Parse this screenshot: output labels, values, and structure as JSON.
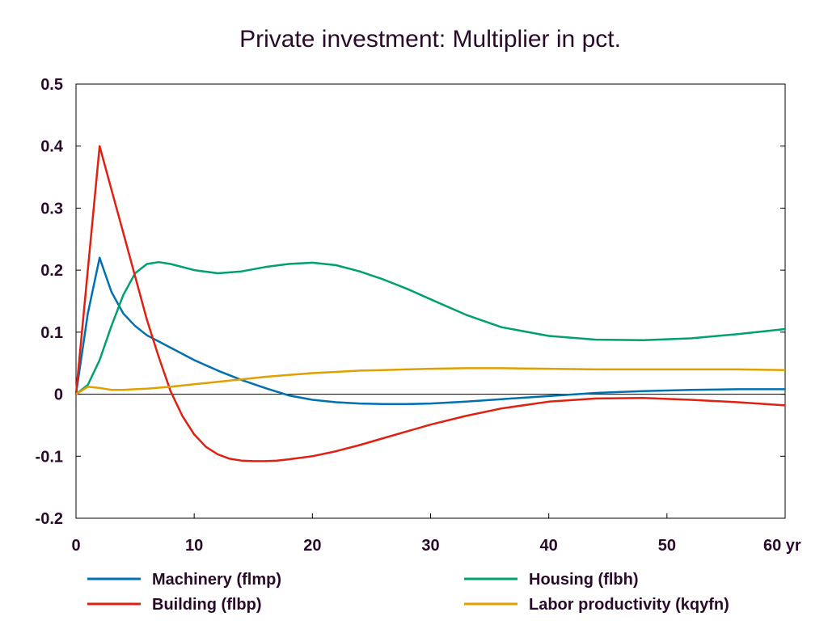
{
  "chart_data": {
    "type": "line",
    "title": "Private investment: Multiplier in pct.",
    "xlabel": "",
    "ylabel": "",
    "x_unit_label": "yr",
    "xlim": [
      0,
      60
    ],
    "ylim": [
      -0.2,
      0.5
    ],
    "x_ticks": [
      0,
      10,
      20,
      30,
      40,
      50,
      60
    ],
    "x_tick_labels": [
      "0",
      "10",
      "20",
      "30",
      "40",
      "50",
      "60 yr"
    ],
    "y_ticks": [
      -0.2,
      -0.1,
      0,
      0.1,
      0.2,
      0.3,
      0.4,
      0.5
    ],
    "y_tick_labels": [
      "-0.2",
      "-0.1",
      "0",
      "0.1",
      "0.2",
      "0.3",
      "0.4",
      "0.5"
    ],
    "grid": false,
    "zero_line": true,
    "legend_position": "bottom",
    "series": [
      {
        "name": "Machinery (flmp)",
        "color": "#0070b0",
        "x": [
          0,
          1,
          2,
          3,
          4,
          5,
          6,
          8,
          10,
          12,
          14,
          16,
          18,
          20,
          22,
          24,
          26,
          28,
          30,
          33,
          36,
          40,
          44,
          48,
          52,
          56,
          60
        ],
        "y": [
          0,
          0.13,
          0.22,
          0.165,
          0.13,
          0.11,
          0.095,
          0.075,
          0.055,
          0.038,
          0.023,
          0.01,
          -0.002,
          -0.009,
          -0.013,
          -0.015,
          -0.016,
          -0.016,
          -0.015,
          -0.012,
          -0.008,
          -0.003,
          0.002,
          0.005,
          0.007,
          0.008,
          0.008
        ]
      },
      {
        "name": "Housing (flbh)",
        "color": "#00a070",
        "x": [
          0,
          1,
          2,
          3,
          4,
          5,
          6,
          7,
          8,
          10,
          12,
          14,
          16,
          18,
          20,
          22,
          24,
          26,
          28,
          30,
          33,
          36,
          40,
          44,
          48,
          52,
          56,
          60
        ],
        "y": [
          0,
          0.015,
          0.055,
          0.11,
          0.16,
          0.195,
          0.21,
          0.213,
          0.21,
          0.2,
          0.195,
          0.198,
          0.205,
          0.21,
          0.212,
          0.208,
          0.198,
          0.185,
          0.17,
          0.153,
          0.128,
          0.108,
          0.094,
          0.088,
          0.087,
          0.09,
          0.097,
          0.105
        ]
      },
      {
        "name": "Building (flbp)",
        "color": "#e02010",
        "x": [
          0,
          1,
          2,
          3,
          4,
          5,
          6,
          7,
          8,
          9,
          10,
          11,
          12,
          13,
          14,
          15,
          16,
          17,
          18,
          20,
          22,
          24,
          26,
          28,
          30,
          33,
          36,
          40,
          44,
          48,
          52,
          56,
          60
        ],
        "y": [
          0,
          0.2,
          0.4,
          0.33,
          0.26,
          0.19,
          0.12,
          0.06,
          0.005,
          -0.035,
          -0.065,
          -0.085,
          -0.097,
          -0.104,
          -0.107,
          -0.108,
          -0.108,
          -0.107,
          -0.105,
          -0.1,
          -0.092,
          -0.082,
          -0.071,
          -0.06,
          -0.049,
          -0.035,
          -0.023,
          -0.012,
          -0.007,
          -0.006,
          -0.009,
          -0.013,
          -0.018
        ]
      },
      {
        "name": "Labor productivity (kqyfn)",
        "color": "#e0a000",
        "x": [
          0,
          1,
          2,
          3,
          4,
          5,
          6,
          8,
          10,
          12,
          14,
          16,
          18,
          20,
          22,
          24,
          26,
          28,
          30,
          33,
          36,
          40,
          44,
          48,
          52,
          56,
          60
        ],
        "y": [
          0,
          0.012,
          0.01,
          0.007,
          0.007,
          0.008,
          0.009,
          0.012,
          0.016,
          0.02,
          0.024,
          0.028,
          0.031,
          0.034,
          0.036,
          0.038,
          0.039,
          0.04,
          0.041,
          0.042,
          0.042,
          0.041,
          0.04,
          0.04,
          0.04,
          0.04,
          0.039
        ]
      }
    ]
  }
}
